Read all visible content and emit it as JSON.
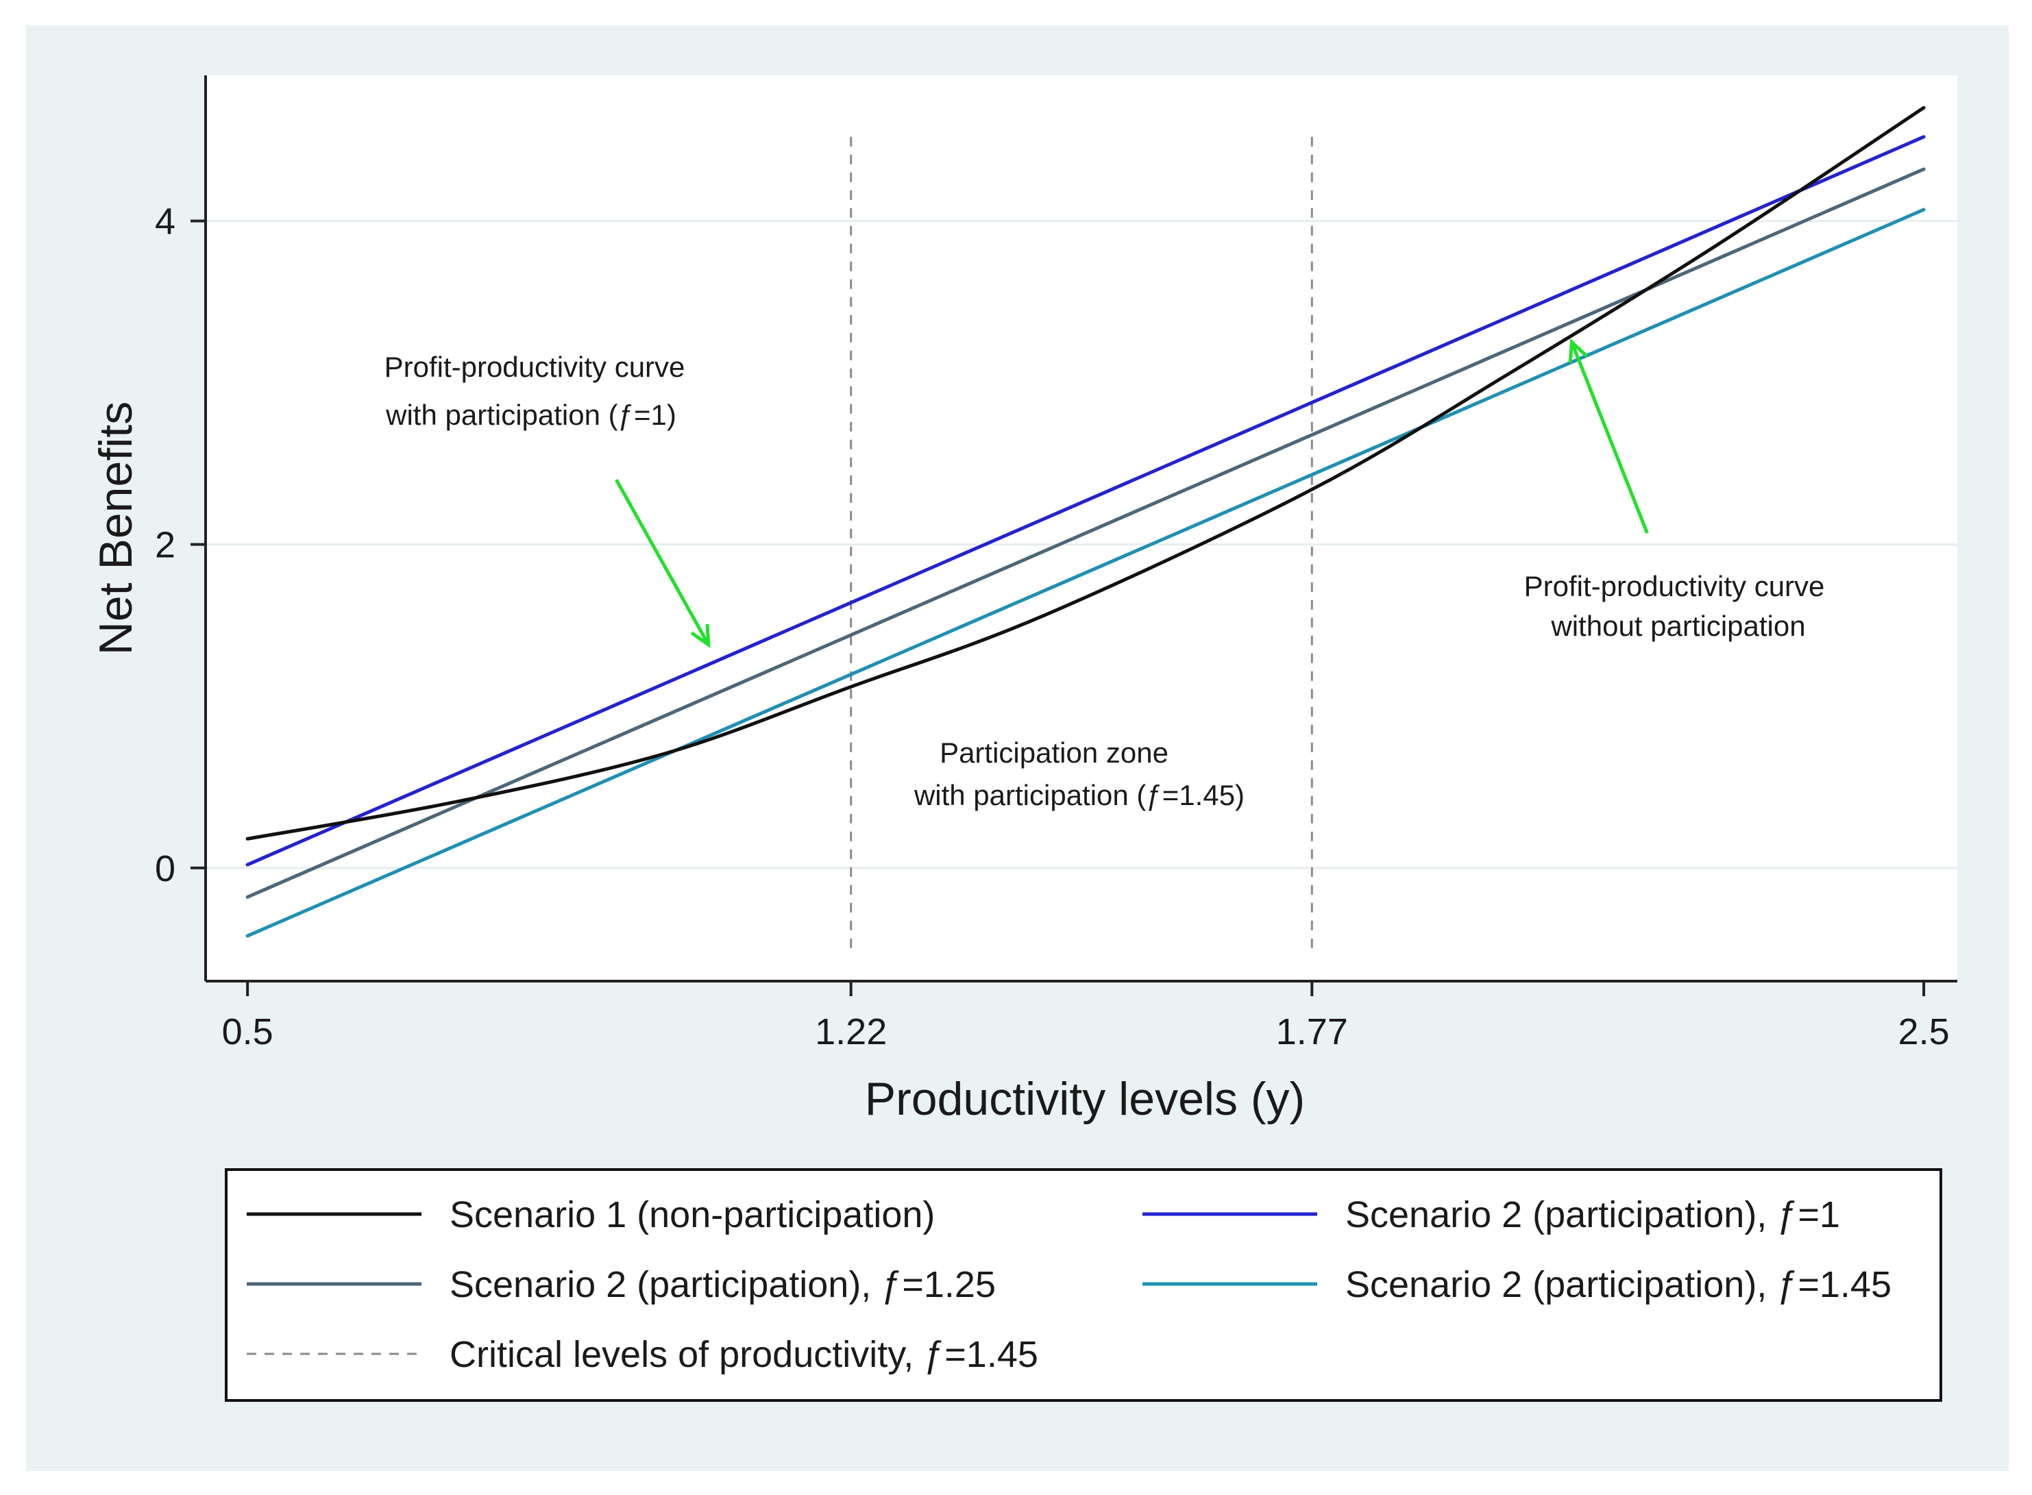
{
  "chart_data": {
    "type": "line",
    "xlabel": "Productivity levels (y)",
    "ylabel": "Net Benefits",
    "xlim": [
      0.45,
      2.54
    ],
    "ylim": [
      -0.7,
      4.9
    ],
    "xticks": [
      0.5,
      1.22,
      1.77,
      2.5
    ],
    "xtick_labels": [
      "0.5",
      "1.22",
      "1.77",
      "2.5"
    ],
    "yticks": [
      0,
      2,
      4
    ],
    "ytick_labels": [
      "0",
      "2",
      "4"
    ],
    "grid": true,
    "series": [
      {
        "name": "Scenario 1 (non-participation)",
        "color": "#111111",
        "x": [
          0.5,
          0.75,
          1.0,
          1.22,
          1.45,
          1.77,
          2.0,
          2.25,
          2.5
        ],
        "y": [
          0.18,
          0.41,
          0.71,
          1.12,
          1.56,
          2.34,
          3.04,
          3.84,
          4.7
        ]
      },
      {
        "name": "Scenario 2 (participation), ƒ=1",
        "color": "#2323d1",
        "x": [
          0.5,
          2.5
        ],
        "y": [
          0.02,
          4.52
        ]
      },
      {
        "name": "Scenario 2 (participation), ƒ=1.25",
        "color": "#4d6679",
        "x": [
          0.5,
          2.5
        ],
        "y": [
          -0.18,
          4.32
        ]
      },
      {
        "name": "Scenario 2 (participation), ƒ=1.45",
        "color": "#1f8fb5",
        "x": [
          0.5,
          2.5
        ],
        "y": [
          -0.42,
          4.07
        ]
      }
    ],
    "vlines": {
      "name": "Critical levels of productivity, ƒ=1.45",
      "x": [
        1.22,
        1.77
      ],
      "y_range": [
        -0.52,
        4.52
      ],
      "color": "#8a8a8a"
    },
    "annotations": {
      "with_participation": {
        "lines": [
          "Profit-productivity curve",
          "with participation (ƒ=1)"
        ],
        "arrow_from": [
          0.94,
          2.4
        ],
        "arrow_to": [
          1.05,
          1.38
        ]
      },
      "zone": {
        "lines": [
          "Participation zone",
          "with participation (ƒ=1.45)"
        ]
      },
      "without_participation": {
        "lines": [
          "Profit-productivity curve",
          "without participation"
        ],
        "arrow_from": [
          2.17,
          2.07
        ],
        "arrow_to": [
          2.08,
          3.25
        ]
      },
      "arrow_color": "#22e02b"
    },
    "legend": {
      "position": "bottom",
      "items": [
        {
          "label": "Scenario 1 (non-participation)",
          "color": "#111111",
          "style": "solid"
        },
        {
          "label": "Scenario 2 (participation), ƒ=1",
          "color": "#2323d1",
          "style": "solid"
        },
        {
          "label": "Scenario 2 (participation), ƒ=1.25",
          "color": "#4d6679",
          "style": "solid"
        },
        {
          "label": "Scenario 2 (participation), ƒ=1.45",
          "color": "#1f8fb5",
          "style": "solid"
        },
        {
          "label": "Critical levels of productivity, ƒ=1.45",
          "color": "#8a8a8a",
          "style": "dashed"
        }
      ]
    },
    "colors": {
      "outer_background": "#eaf2f3",
      "plot_background": "#ffffff",
      "gridline": "#e8eef0"
    }
  }
}
